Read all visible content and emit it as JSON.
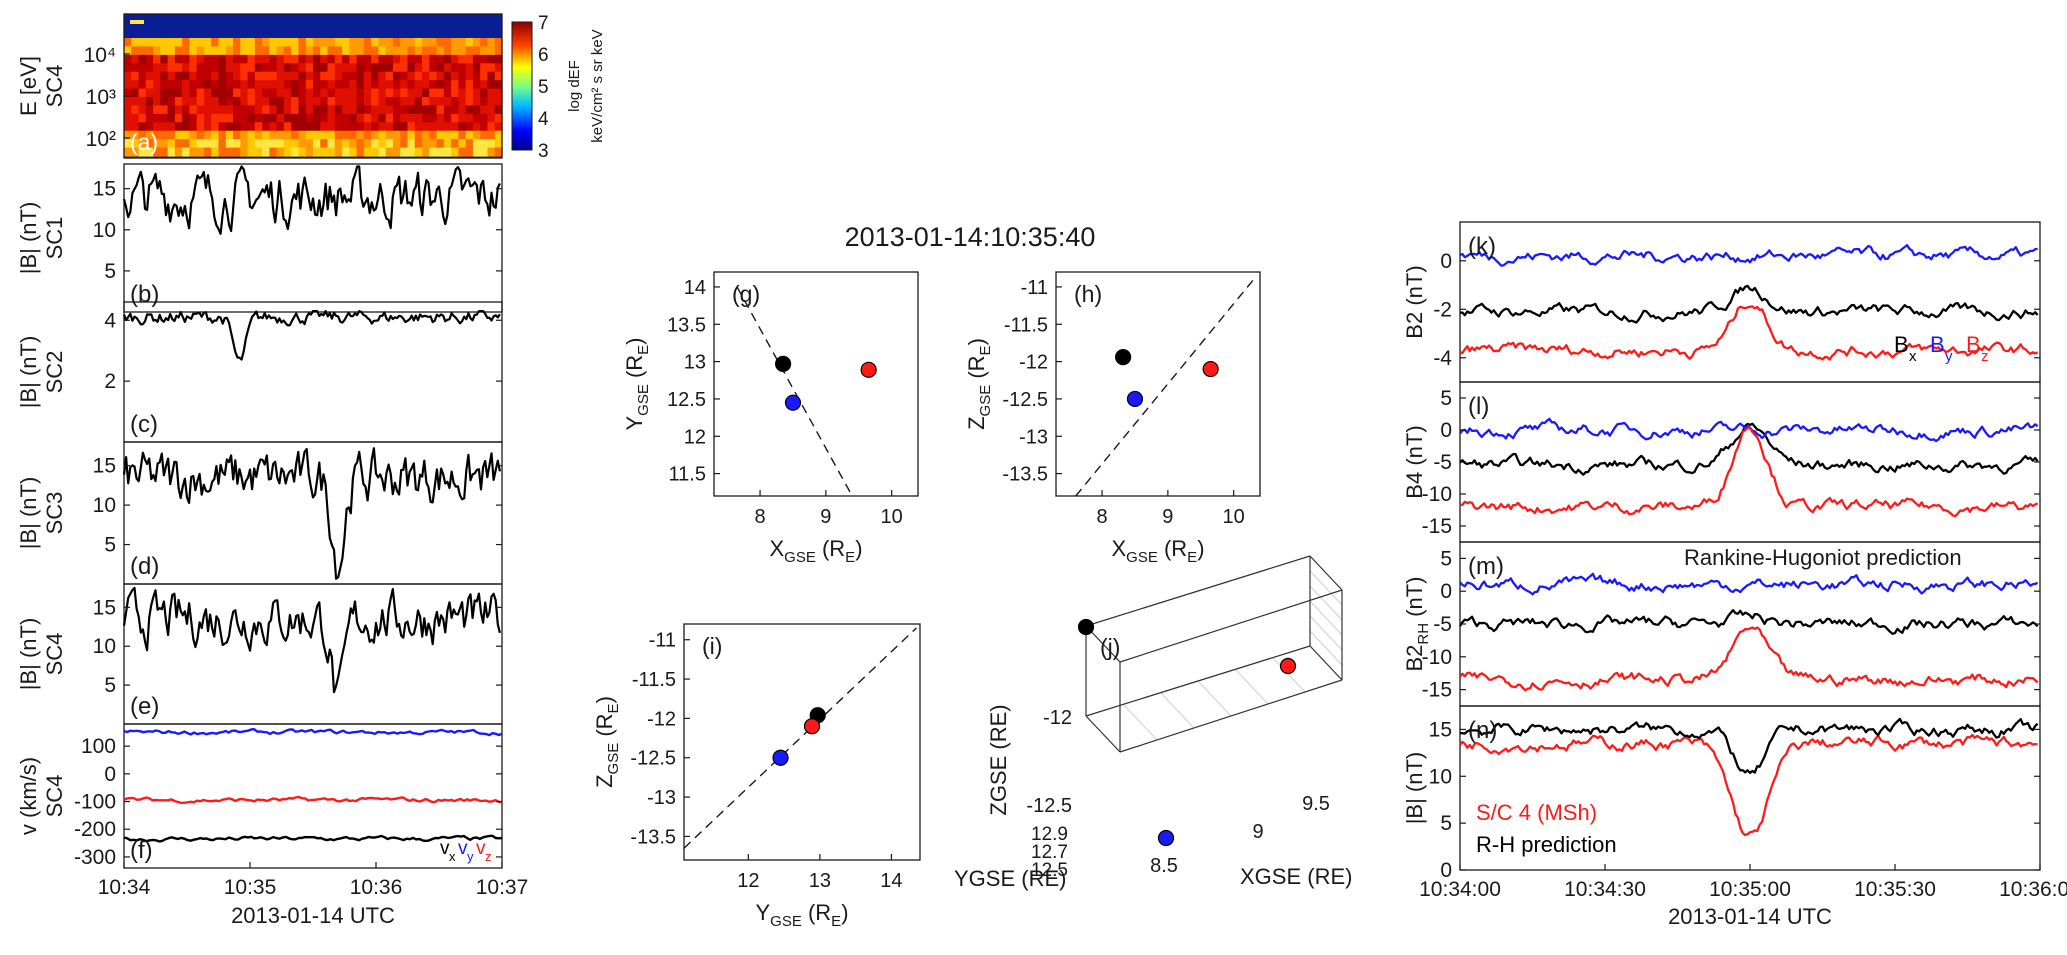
{
  "figure_title": "2013-01-14:10:35:40",
  "colors": {
    "bx": "#000000",
    "by": "#1a1aff",
    "bz": "#ff1a1a",
    "sc1": "#000000",
    "sc2": "#1a1aff",
    "sc3": "#ff1a1a",
    "sc4": "#000000"
  },
  "chart_data": [
    {
      "id": "a",
      "type": "heatmap",
      "label": "(a)",
      "ylabel": [
        "E [eV]",
        "SC4"
      ],
      "yscale": "log",
      "yticks": [
        "10²",
        "10³",
        "10⁴"
      ],
      "colorbar": {
        "min": 3,
        "max": 7,
        "ticks": [
          "3",
          "4",
          "5",
          "6",
          "7"
        ],
        "label": [
          "log dEF",
          "keV/cm² s sr keV"
        ]
      },
      "xlim": [
        "10:34",
        "10:37"
      ],
      "note": "ion energy spectrogram, high flux 10^2–10^4 eV"
    },
    {
      "id": "b",
      "type": "line",
      "label": "(b)",
      "ylabel": [
        "|B| (nT)",
        "SC1"
      ],
      "xlim": [
        "10:34",
        "10:37"
      ],
      "ylim": [
        0,
        18
      ],
      "yticks": [
        5,
        10,
        15
      ],
      "series": [
        {
          "color": "#000000",
          "mean": 14,
          "dips": []
        }
      ]
    },
    {
      "id": "c",
      "type": "line",
      "label": "(c)",
      "ylabel": [
        "|B| (nT)",
        "SC2"
      ],
      "xlim": [
        "10:34",
        "10:37"
      ],
      "ylim": [
        0,
        4.6
      ],
      "yticks": [
        2,
        4
      ],
      "series": [
        {
          "color": "#000000",
          "mean": 4.1,
          "dips": [
            {
              "t": "10:34:55",
              "min": 2.6
            }
          ]
        }
      ]
    },
    {
      "id": "d",
      "type": "line",
      "label": "(d)",
      "ylabel": [
        "|B| (nT)",
        "SC3"
      ],
      "xlim": [
        "10:34",
        "10:37"
      ],
      "ylim": [
        0,
        18
      ],
      "yticks": [
        5,
        10,
        15
      ],
      "series": [
        {
          "color": "#000000",
          "mean": 13.5,
          "dips": [
            {
              "t": "10:35:42",
              "min": 3
            }
          ]
        }
      ]
    },
    {
      "id": "e",
      "type": "line",
      "label": "(e)",
      "ylabel": [
        "|B| (nT)",
        "SC4"
      ],
      "xlim": [
        "10:34",
        "10:37"
      ],
      "ylim": [
        0,
        18
      ],
      "yticks": [
        5,
        10,
        15
      ],
      "series": [
        {
          "color": "#000000",
          "mean": 13.5,
          "dips": [
            {
              "t": "10:35:42",
              "min": 3
            }
          ]
        }
      ]
    },
    {
      "id": "f",
      "type": "line",
      "label": "(f)",
      "ylabel": [
        "v (km/s)",
        "SC4"
      ],
      "xlim": [
        "10:34",
        "10:37"
      ],
      "ylim": [
        -340,
        180
      ],
      "yticks": [
        -300,
        -200,
        -100,
        0,
        100
      ],
      "xticks": [
        "10:34",
        "10:35",
        "10:36",
        "10:37"
      ],
      "xlabel": "2013-01-14 UTC",
      "legend": [
        "vx",
        "vy",
        "vz"
      ],
      "series": [
        {
          "name": "vx",
          "color": "#000000",
          "mean": -235
        },
        {
          "name": "vy",
          "color": "#1a1aff",
          "mean": 150
        },
        {
          "name": "vz",
          "color": "#ff1a1a",
          "mean": -95
        }
      ]
    },
    {
      "id": "g",
      "type": "scatter",
      "label": "(g)",
      "xlabel": "XGSE (RE)",
      "ylabel": "YGSE (RE)",
      "xlim": [
        7.3,
        10.4
      ],
      "ylim": [
        11.2,
        14.2
      ],
      "xticks": [
        8,
        9,
        10
      ],
      "yticks": [
        11.5,
        12,
        12.5,
        13,
        13.5,
        14
      ],
      "points": [
        {
          "x": 8.35,
          "y": 12.97,
          "color": "#000000"
        },
        {
          "x": 8.5,
          "y": 12.45,
          "color": "#1a1aff"
        },
        {
          "x": 9.65,
          "y": 12.89,
          "color": "#ff1a1a"
        }
      ],
      "dashed": [
        [
          7.65,
          14.0
        ],
        [
          9.4,
          11.2
        ]
      ]
    },
    {
      "id": "h",
      "type": "scatter",
      "label": "(h)",
      "xlabel": "XGSE (RE)",
      "ylabel": "ZGSE (RE)",
      "xlim": [
        7.3,
        10.4
      ],
      "ylim": [
        -13.8,
        -10.8
      ],
      "xticks": [
        8,
        9,
        10
      ],
      "yticks": [
        -13.5,
        -13,
        -12.5,
        -12,
        -11.5,
        -11
      ],
      "points": [
        {
          "x": 8.32,
          "y": -11.94,
          "color": "#000000"
        },
        {
          "x": 8.5,
          "y": -12.5,
          "color": "#1a1aff"
        },
        {
          "x": 9.65,
          "y": -12.1,
          "color": "#ff1a1a"
        }
      ],
      "dashed": [
        [
          7.6,
          -13.8
        ],
        [
          10.35,
          -10.85
        ]
      ]
    },
    {
      "id": "i",
      "type": "scatter",
      "label": "(i)",
      "xlabel": "YGSE (RE)",
      "ylabel": "ZGSE (RE)",
      "xlim": [
        11.1,
        14.4
      ],
      "ylim": [
        -13.8,
        -10.8
      ],
      "xticks": [
        12,
        13,
        14
      ],
      "yticks": [
        -13.5,
        -13,
        -12.5,
        -12,
        -11.5,
        -11
      ],
      "points": [
        {
          "x": 12.97,
          "y": -11.96,
          "color": "#000000"
        },
        {
          "x": 12.45,
          "y": -12.5,
          "color": "#1a1aff"
        },
        {
          "x": 12.89,
          "y": -12.1,
          "color": "#ff1a1a"
        }
      ],
      "dashed": [
        [
          11.1,
          -13.65
        ],
        [
          14.35,
          -10.85
        ]
      ]
    },
    {
      "id": "j",
      "type": "scatter",
      "label": "(j)",
      "xlabel": "XGSE (RE)",
      "ylabel": "ZGSE (RE)",
      "zlabel": "YGSE (RE)",
      "xticks": [
        8.5,
        9,
        9.5
      ],
      "yticks": [
        12.5,
        12.7,
        12.9
      ],
      "zticks": [
        -12.5,
        -12
      ],
      "points": [
        {
          "x": 8.35,
          "y": 12.97,
          "z": -11.96,
          "color": "#000000"
        },
        {
          "x": 8.5,
          "y": 12.45,
          "z": -12.5,
          "color": "#1a1aff"
        },
        {
          "x": 9.65,
          "y": 12.89,
          "z": -12.1,
          "color": "#ff1a1a"
        }
      ]
    },
    {
      "id": "k",
      "type": "line",
      "label": "(k)",
      "ylabel": "B2 (nT)",
      "xlim": [
        "10:34:00",
        "10:36:00"
      ],
      "ylim": [
        -5,
        1.6
      ],
      "yticks": [
        -4,
        -2,
        0
      ],
      "legend": [
        "Bx",
        "By",
        "Bz"
      ],
      "series": [
        {
          "name": "Bx",
          "color": "#000000",
          "mean": -2.1
        },
        {
          "name": "By",
          "color": "#1a1aff",
          "mean": 0.2
        },
        {
          "name": "Bz",
          "color": "#ff1a1a",
          "mean": -3.7
        }
      ]
    },
    {
      "id": "l",
      "type": "line",
      "label": "(l)",
      "ylabel": "B4 (nT)",
      "xlim": [
        "10:34:00",
        "10:36:00"
      ],
      "ylim": [
        -17.5,
        7.5
      ],
      "yticks": [
        -15,
        -10,
        -5,
        0,
        5
      ],
      "series": [
        {
          "name": "Bx",
          "color": "#000000",
          "mean": -5.5
        },
        {
          "name": "By",
          "color": "#1a1aff",
          "mean": 0
        },
        {
          "name": "Bz",
          "color": "#ff1a1a",
          "mean": -12
        }
      ]
    },
    {
      "id": "m",
      "type": "line",
      "label": "(m)",
      "ylabel": "B2RH (nT)",
      "annotation": "Rankine-Hugoniot prediction",
      "xlim": [
        "10:34:00",
        "10:36:00"
      ],
      "ylim": [
        -17.5,
        7.5
      ],
      "yticks": [
        -15,
        -10,
        -5,
        0,
        5
      ],
      "series": [
        {
          "name": "Bx",
          "color": "#000000",
          "mean": -5
        },
        {
          "name": "By",
          "color": "#1a1aff",
          "mean": 1
        },
        {
          "name": "Bz",
          "color": "#ff1a1a",
          "mean": -13.5
        }
      ]
    },
    {
      "id": "n",
      "type": "line",
      "label": "(n)",
      "ylabel": "|B| (nT)",
      "xlim": [
        "10:34:00",
        "10:36:00"
      ],
      "ylim": [
        0,
        17.5
      ],
      "yticks": [
        0,
        5,
        10,
        15
      ],
      "xticks": [
        "10:34:00",
        "10:34:30",
        "10:35:00",
        "10:35:30",
        "10:36:00"
      ],
      "xlabel": "2013-01-14 UTC",
      "series": [
        {
          "name": "S/C 4 (MSh)",
          "color": "#ff1a1a",
          "mean": 13.5
        },
        {
          "name": "R-H prediction",
          "color": "#000000",
          "mean": 15
        }
      ]
    }
  ]
}
